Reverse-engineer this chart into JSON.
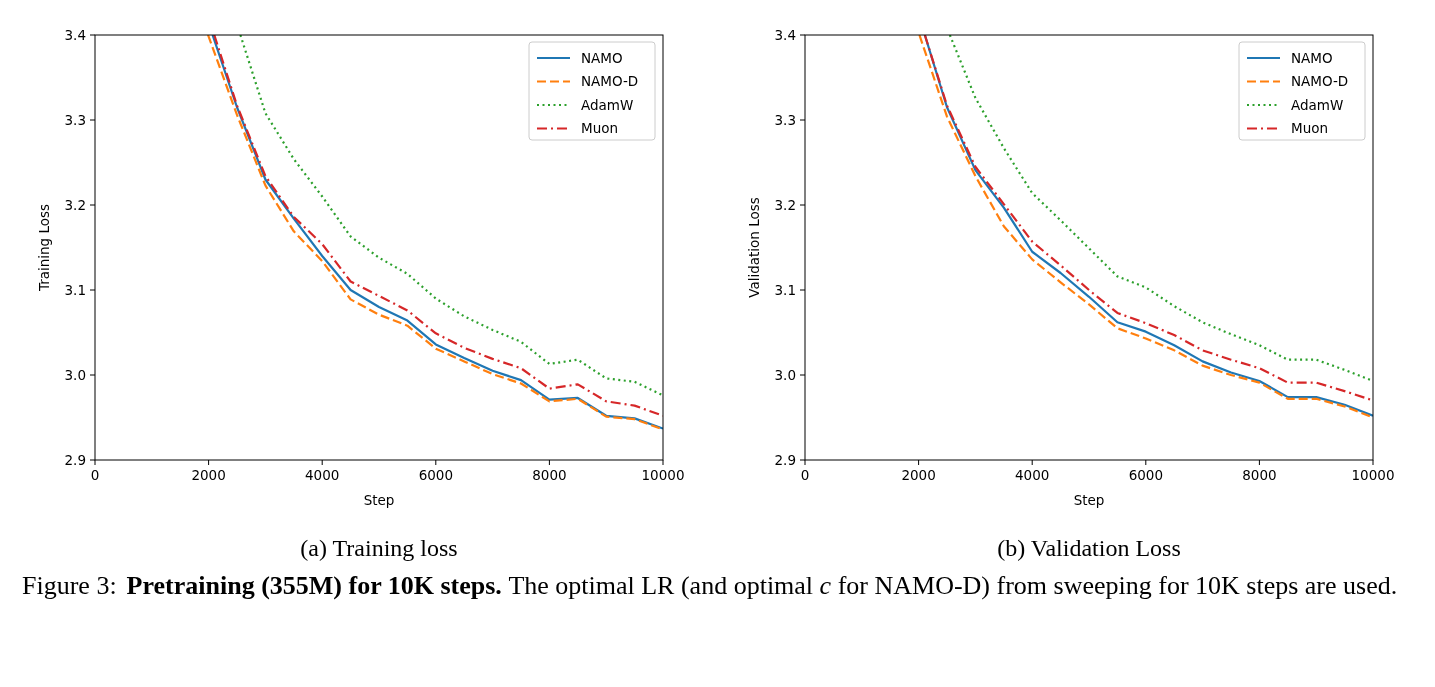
{
  "chart_data": [
    {
      "type": "line",
      "title": "(a) Training loss",
      "xlabel": "Step",
      "ylabel": "Training Loss",
      "xlim": [
        0,
        10000
      ],
      "ylim": [
        2.9,
        3.4
      ],
      "xticks": [
        0,
        2000,
        4000,
        6000,
        8000,
        10000
      ],
      "yticks": [
        2.9,
        {
          "value": 3,
          "label": "3.0"
        },
        3.1,
        3.2,
        3.3,
        3.4
      ],
      "legend": "top right",
      "grid": false,
      "series": [
        {
          "name": "NAMO",
          "color": "#1f77b4",
          "line_style": "solid",
          "x": [
            2070,
            2500,
            3000,
            3500,
            4000,
            4500,
            5000,
            5500,
            6000,
            6500,
            7000,
            7500,
            8000,
            8500,
            9000,
            9500,
            10000
          ],
          "values": [
            3.4,
            3.315,
            3.23,
            3.184,
            3.14,
            3.1,
            3.08,
            3.064,
            3.036,
            3.02,
            3.005,
            2.994,
            2.971,
            2.973,
            2.952,
            2.949,
            2.937
          ]
        },
        {
          "name": "NAMO-D",
          "color": "#ff7f0e",
          "line_style": "dashed",
          "x": [
            1990,
            2500,
            3000,
            3500,
            4000,
            4500,
            5000,
            5500,
            6000,
            6500,
            7000,
            7500,
            8000,
            8500,
            9000,
            9500,
            10000
          ],
          "values": [
            3.4,
            3.306,
            3.223,
            3.169,
            3.134,
            3.089,
            3.071,
            3.058,
            3.031,
            3.016,
            3.001,
            2.99,
            2.969,
            2.972,
            2.951,
            2.948,
            2.936
          ]
        },
        {
          "name": "AdamW",
          "color": "#2ca02c",
          "line_style": "dotted",
          "x": [
            2560,
            3000,
            3500,
            4000,
            4500,
            5000,
            5500,
            6000,
            6500,
            7000,
            7500,
            8000,
            8500,
            9000,
            9500,
            10000
          ],
          "values": [
            3.4,
            3.308,
            3.254,
            3.21,
            3.163,
            3.138,
            3.119,
            3.09,
            3.069,
            3.053,
            3.039,
            3.013,
            3.018,
            2.996,
            2.992,
            2.976
          ]
        },
        {
          "name": "Muon",
          "color": "#d62728",
          "line_style": "dashdot",
          "x": [
            2100,
            2500,
            3000,
            3500,
            4000,
            4500,
            5000,
            5500,
            6000,
            6500,
            7000,
            7500,
            8000,
            8500,
            9000,
            9500,
            10000
          ],
          "values": [
            3.4,
            3.317,
            3.234,
            3.186,
            3.154,
            3.11,
            3.093,
            3.076,
            3.049,
            3.032,
            3.019,
            3.008,
            2.984,
            2.989,
            2.969,
            2.964,
            2.952
          ]
        }
      ]
    },
    {
      "type": "line",
      "title": "(b) Validation Loss",
      "xlabel": "Step",
      "ylabel": "Validation Loss",
      "xlim": [
        0,
        10000
      ],
      "ylim": [
        2.9,
        3.4
      ],
      "xticks": [
        0,
        2000,
        4000,
        6000,
        8000,
        10000
      ],
      "yticks": [
        2.9,
        {
          "value": 3,
          "label": "3.0"
        },
        3.1,
        3.2,
        3.3,
        3.4
      ],
      "legend": "top right",
      "grid": false,
      "series": [
        {
          "name": "NAMO",
          "color": "#1f77b4",
          "line_style": "solid",
          "x": [
            2110,
            2500,
            3000,
            3500,
            4000,
            4500,
            5000,
            5500,
            6000,
            6500,
            7000,
            7500,
            8000,
            8500,
            9000,
            9500,
            10000
          ],
          "values": [
            3.4,
            3.315,
            3.241,
            3.197,
            3.145,
            3.12,
            3.092,
            3.062,
            3.051,
            3.035,
            3.016,
            3.003,
            2.993,
            2.974,
            2.974,
            2.965,
            2.952
          ]
        },
        {
          "name": "NAMO-D",
          "color": "#ff7f0e",
          "line_style": "dashed",
          "x": [
            2015,
            2500,
            3000,
            3500,
            4000,
            4500,
            5000,
            5500,
            6000,
            6500,
            7000,
            7500,
            8000,
            8500,
            9000,
            9500,
            10000
          ],
          "values": [
            3.4,
            3.304,
            3.234,
            3.175,
            3.136,
            3.109,
            3.083,
            3.055,
            3.043,
            3.029,
            3.011,
            3.0,
            2.991,
            2.972,
            2.972,
            2.963,
            2.95
          ]
        },
        {
          "name": "AdamW",
          "color": "#2ca02c",
          "line_style": "dotted",
          "x": [
            2550,
            3000,
            3500,
            4000,
            4500,
            5000,
            5500,
            6000,
            6500,
            7000,
            7500,
            8000,
            8500,
            9000,
            9500,
            10000
          ],
          "values": [
            3.4,
            3.326,
            3.267,
            3.214,
            3.182,
            3.149,
            3.116,
            3.103,
            3.081,
            3.062,
            3.048,
            3.035,
            3.018,
            3.018,
            3.006,
            2.993
          ]
        },
        {
          "name": "Muon",
          "color": "#d62728",
          "line_style": "dashdot",
          "x": [
            2110,
            2500,
            3000,
            3500,
            4000,
            4500,
            5000,
            5500,
            6000,
            6500,
            7000,
            7500,
            8000,
            8500,
            9000,
            9500,
            10000
          ],
          "values": [
            3.4,
            3.317,
            3.245,
            3.201,
            3.157,
            3.129,
            3.1,
            3.073,
            3.061,
            3.047,
            3.029,
            3.018,
            3.008,
            2.991,
            2.991,
            2.981,
            2.97
          ]
        }
      ]
    },
    {
      "type": "other",
      "annotations": [
        "Figure 3:",
        "Pretraining (355M) for 10K steps.",
        "The optimal LR (and optimal ",
        "c",
        " for NAMO-D) from sweeping for 10K steps are used."
      ]
    }
  ]
}
